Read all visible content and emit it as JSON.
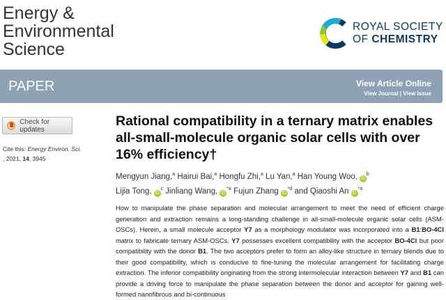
{
  "journal": {
    "line1": "Energy &",
    "line2": "Environmental",
    "line3": "Science"
  },
  "publisher": {
    "line1": "ROYAL SOCIETY",
    "line2_of": "OF ",
    "line2_bold": "CHEMISTRY"
  },
  "banner": {
    "type": "PAPER",
    "view_online": "View Article Online",
    "view_journal": "View Journal",
    "separator": " | ",
    "view_issue": "View Issue",
    "color": "#8fa1b4"
  },
  "check_updates": "Check for updates",
  "cite": {
    "label": "Cite this: ",
    "journal": "Energy Environ. Sci.",
    "year": ", 2021, ",
    "volume": "14",
    "page": ", 3945"
  },
  "title": "Rational compatibility in a ternary matrix enables all-small-molecule organic solar cells with over 16% efficiency†",
  "authors": [
    {
      "name": "Mengyun Jiang,",
      "sup": "a",
      "orcid": false
    },
    {
      "name": "Hairui Bai,",
      "sup": "a",
      "orcid": false
    },
    {
      "name": "Hongfu Zhi,",
      "sup": "a",
      "orcid": false
    },
    {
      "name": "Lu Yan,",
      "sup": "a",
      "orcid": false
    },
    {
      "name": "Han Young Woo,",
      "sup": "b",
      "orcid": true
    },
    {
      "name": "Lijia Tong,",
      "sup": "c",
      "orcid": true
    },
    {
      "name": "Jinliang Wang,",
      "sup": "*a",
      "orcid": true
    },
    {
      "name": "Fujun Zhang",
      "sup": "*d",
      "orcid": true
    },
    {
      "name": "and Qiaoshi An",
      "sup": "*a",
      "orcid": true
    }
  ],
  "abstract": [
    {
      "t": "How to manipulate the phase separation and molecular arrangement to meet the need of efficient charge generation and extraction remains a long-standing challenge in all-small-molecule organic solar cells (ASM-OSCs). Herein, a small molecule acceptor "
    },
    {
      "b": "Y7"
    },
    {
      "t": " as a morphology modulator was incorporated into a "
    },
    {
      "b": "B1"
    },
    {
      "t": ":"
    },
    {
      "b": "BO-4Cl"
    },
    {
      "t": " matrix to fabricate ternary ASM-OSCs. "
    },
    {
      "b": "Y7"
    },
    {
      "t": " possesses excellent compatibility with the acceptor "
    },
    {
      "b": "BO-4Cl"
    },
    {
      "t": " but poor compatibility with the donor "
    },
    {
      "b": "B1"
    },
    {
      "t": ". The two acceptors prefer to form an alloy-like structure in ternary blends due to their good compatibility, which is conducive to fine-tuning the molecular arrangement for facilitating charge extraction. The inferior compatibility originating from the strong intermolecular interaction between "
    },
    {
      "b": "Y7"
    },
    {
      "t": " and "
    },
    {
      "b": "B1"
    },
    {
      "t": " can provide a driving force to manipulate the phase separation between the donor and acceptor for gaining well-formed nanofibrous and bi-continuous"
    }
  ]
}
